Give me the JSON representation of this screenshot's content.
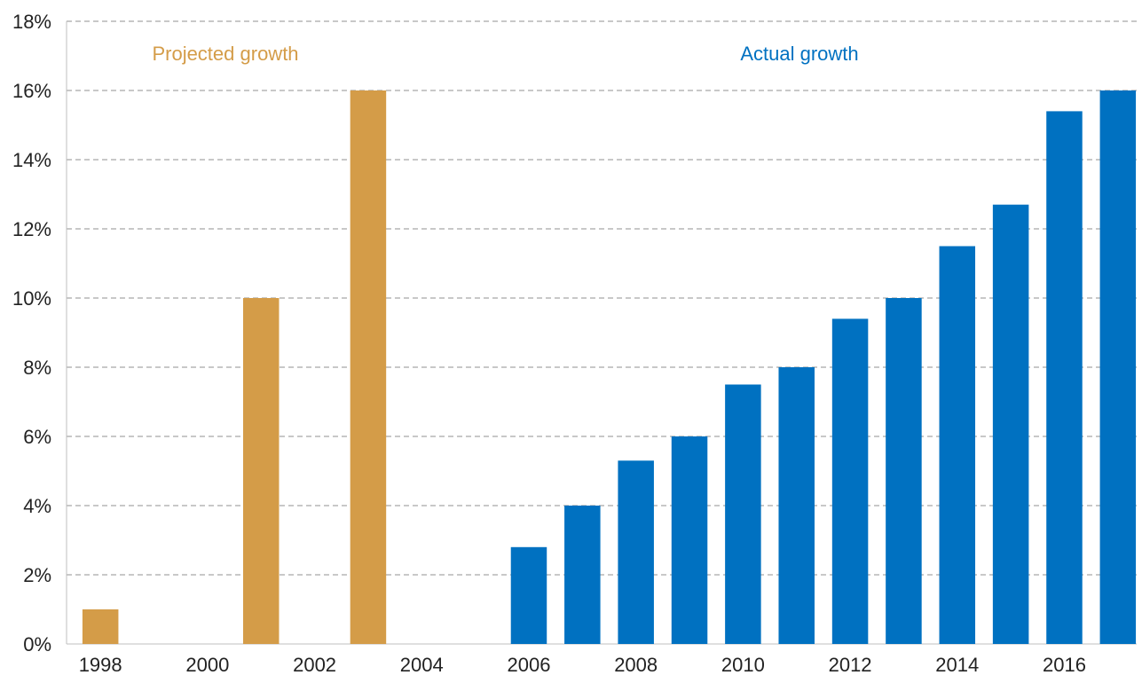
{
  "chart_data": {
    "type": "bar",
    "x": [
      1998,
      1999,
      2000,
      2001,
      2002,
      2003,
      2004,
      2005,
      2006,
      2007,
      2008,
      2009,
      2010,
      2011,
      2012,
      2013,
      2014,
      2015,
      2016,
      2017
    ],
    "x_tick_labels": [
      "1998",
      "2000",
      "2002",
      "2004",
      "2006",
      "2008",
      "2010",
      "2012",
      "2014",
      "2016"
    ],
    "y_tick_labels": [
      "0%",
      "2%",
      "4%",
      "6%",
      "8%",
      "10%",
      "12%",
      "14%",
      "16%",
      "18%"
    ],
    "ylim": [
      0,
      18
    ],
    "grid": true,
    "series": [
      {
        "name": "Projected growth",
        "color": "#D49C48",
        "points": [
          {
            "x": 1998,
            "y": 1.0
          },
          {
            "x": 2001,
            "y": 10.0
          },
          {
            "x": 2003,
            "y": 16.0
          }
        ]
      },
      {
        "name": "Actual growth",
        "color": "#0071C1",
        "points": [
          {
            "x": 2006,
            "y": 2.8
          },
          {
            "x": 2007,
            "y": 4.0
          },
          {
            "x": 2008,
            "y": 5.3
          },
          {
            "x": 2009,
            "y": 6.0
          },
          {
            "x": 2010,
            "y": 7.5
          },
          {
            "x": 2011,
            "y": 8.0
          },
          {
            "x": 2012,
            "y": 9.4
          },
          {
            "x": 2013,
            "y": 10.0
          },
          {
            "x": 2014,
            "y": 11.5
          },
          {
            "x": 2015,
            "y": 12.7
          },
          {
            "x": 2016,
            "y": 15.4
          },
          {
            "x": 2017,
            "y": 16.0
          }
        ]
      }
    ]
  }
}
